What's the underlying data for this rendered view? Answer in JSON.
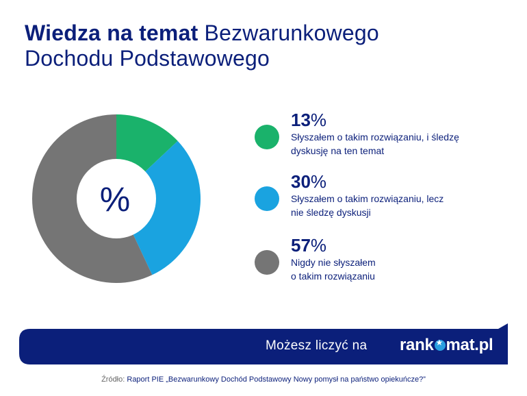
{
  "title": {
    "bold": "Wiedza na temat",
    "regular_line1": "Bezwarunkowego",
    "regular_line2": "Dochodu Podstawowego"
  },
  "chart_center_label": "%",
  "chart_data": {
    "type": "pie",
    "title": "Wiedza na temat Bezwarunkowego Dochodu Podstawowego",
    "categories": [
      "Słyszałem o takim rozwiązaniu, i śledzę dyskusję na ten temat",
      "Słyszałem o takim rozwiązaniu, lecz nie śledzę dyskusji",
      "Nigdy nie słyszałem o takim rozwiązaniu"
    ],
    "values": [
      13,
      30,
      57
    ],
    "colors": [
      "#1ab26b",
      "#1aa3e0",
      "#757575"
    ],
    "donut": true,
    "unit": "%"
  },
  "legend": [
    {
      "value": "13",
      "symbol": "%",
      "line1": "Słyszałem o takim rozwiązaniu, i śledzę",
      "line2": "dyskusję na ten temat",
      "color": "#1ab26b"
    },
    {
      "value": "30",
      "symbol": "%",
      "line1": "Słyszałem o takim rozwiązaniu, lecz",
      "line2": "nie śledzę dyskusji",
      "color": "#1aa3e0"
    },
    {
      "value": "57",
      "symbol": "%",
      "line1": "Nigdy nie słyszałem",
      "line2": "o takim rozwiązaniu",
      "color": "#757575"
    }
  ],
  "banner": {
    "text": "Możesz liczyć na",
    "logo_left": "rank",
    "logo_right": "mat.pl",
    "color": "#0b1f7a"
  },
  "source": {
    "label": "Źródło:",
    "text": "Raport PIE „Bezwarunkowy Dochód Podstawowy Nowy pomysł na państwo opiekuńcze?”"
  }
}
